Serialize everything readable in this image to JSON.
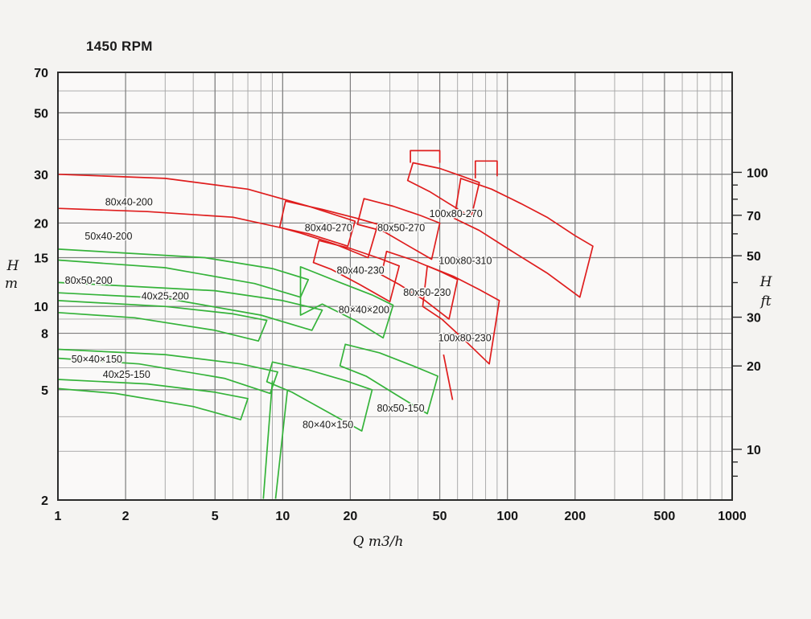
{
  "title": "1450 RPM",
  "colors": {
    "background": "#f4f3f1",
    "plot_fill": "#faf9f8",
    "grid_minor": "#a3a3a3",
    "grid_major": "#7e7e7e",
    "frame": "#2b2b2b",
    "tick_text": "#141414",
    "label_text": "#1c1c1c",
    "red": "#df1d1d",
    "green": "#35b33a"
  },
  "chart_data": {
    "type": "area",
    "title": "1450 RPM",
    "xlabel": "Q m3/h",
    "ylabel_left_line1": "H",
    "ylabel_left_line2": "m",
    "ylabel_right_line1": "H",
    "ylabel_right_line2": "ft",
    "x_scale": "log",
    "y_scale": "log",
    "xlim": [
      1,
      1000
    ],
    "ylim": [
      2,
      70
    ],
    "x_major_ticks": [
      1,
      2,
      5,
      10,
      20,
      50,
      100,
      200,
      500,
      1000
    ],
    "x_minor_ticks": [
      1,
      2,
      3,
      4,
      5,
      6,
      7,
      8,
      9,
      10,
      20,
      30,
      40,
      50,
      60,
      70,
      80,
      90,
      100,
      200,
      300,
      400,
      500,
      600,
      700,
      800,
      900,
      1000
    ],
    "y_major_ticks_m": [
      2,
      5,
      8,
      10,
      15,
      20,
      30,
      50,
      70
    ],
    "y_minor_ticks_m": [
      2,
      3,
      4,
      5,
      6,
      7,
      8,
      9,
      10,
      15,
      20,
      30,
      40,
      50,
      60,
      70
    ],
    "y_ticks_ft_labeled": [
      10,
      20,
      30,
      50,
      70,
      100
    ],
    "y_ticks_ft_minor": [
      8,
      9,
      10,
      20,
      30,
      40,
      50,
      60,
      70,
      80,
      90,
      100
    ],
    "ft_per_m": 3.2808,
    "envelopes": [
      {
        "label": "80x40-200",
        "family": "red",
        "label_q": 2.07,
        "label_h": 23.8,
        "points": [
          [
            1,
            30
          ],
          [
            3,
            29
          ],
          [
            7,
            26.5
          ],
          [
            13,
            23
          ],
          [
            21,
            20.3
          ],
          [
            19.5,
            16.5
          ],
          [
            13,
            18.3
          ],
          [
            6,
            21
          ],
          [
            2.5,
            22
          ],
          [
            1,
            22.6
          ]
        ]
      },
      {
        "label": "80x40-270",
        "family": "red",
        "label_q": 16,
        "label_h": 19.2,
        "points": [
          [
            10.3,
            24
          ],
          [
            15,
            22.4
          ],
          [
            21,
            20.9
          ],
          [
            26.5,
            19.8
          ],
          [
            24,
            15
          ],
          [
            17,
            16.8
          ],
          [
            12,
            18.4
          ],
          [
            9.7,
            19.3
          ]
        ]
      },
      {
        "label": "80x40-230",
        "family": "red",
        "label_q": 22.2,
        "label_h": 13.5,
        "points": [
          [
            14.5,
            17.3
          ],
          [
            20,
            16.2
          ],
          [
            27,
            14.9
          ],
          [
            33,
            14
          ],
          [
            30,
            10.4
          ],
          [
            22,
            12
          ],
          [
            16.5,
            13.6
          ],
          [
            13.7,
            14.4
          ]
        ]
      },
      {
        "label": "80x50-270",
        "family": "red",
        "label_q": 33.7,
        "label_h": 19.2,
        "points": [
          [
            23,
            24.5
          ],
          [
            31,
            23
          ],
          [
            41,
            21.3
          ],
          [
            50,
            20
          ],
          [
            46,
            14.8
          ],
          [
            36,
            16.6
          ],
          [
            28,
            18.7
          ],
          [
            21.5,
            19.8
          ]
        ]
      },
      {
        "label": "80x50-230",
        "family": "red",
        "label_q": 43.9,
        "label_h": 11.2,
        "points": [
          [
            29,
            15.8
          ],
          [
            38,
            14.7
          ],
          [
            50,
            13.4
          ],
          [
            60,
            12.5
          ],
          [
            55,
            9
          ],
          [
            43,
            10.5
          ],
          [
            33,
            12
          ],
          [
            27.5,
            13
          ]
        ]
      },
      {
        "label": "100x80-270",
        "family": "red",
        "label_q": 59,
        "label_h": 21.6,
        "points": [
          [
            38,
            33
          ],
          [
            50,
            31.5
          ],
          [
            63,
            29.5
          ],
          [
            75,
            28
          ],
          [
            69,
            21
          ],
          [
            55,
            23.5
          ],
          [
            45,
            26
          ],
          [
            36,
            28.5
          ]
        ]
      },
      {
        "label": "100x80-310",
        "family": "red",
        "label_q": 65,
        "label_h": 14.6,
        "points": [
          [
            62,
            29
          ],
          [
            85,
            26.5
          ],
          [
            115,
            23.5
          ],
          [
            150,
            21
          ],
          [
            200,
            18
          ],
          [
            240,
            16.5
          ],
          [
            210,
            10.8
          ],
          [
            150,
            13.2
          ],
          [
            105,
            15.8
          ],
          [
            75,
            18.8
          ],
          [
            58,
            20.8
          ]
        ]
      },
      {
        "label": "100x80-230",
        "family": "red",
        "label_q": 64.6,
        "label_h": 7.7,
        "points": [
          [
            44,
            14
          ],
          [
            58,
            12.8
          ],
          [
            75,
            11.5
          ],
          [
            92,
            10.5
          ],
          [
            83,
            6.2
          ],
          [
            64,
            7.6
          ],
          [
            51,
            9
          ],
          [
            42,
            10
          ]
        ]
      },
      {
        "label": "50x40-200",
        "family": "green",
        "label_q": 1.68,
        "label_h": 17.9,
        "points": [
          [
            1,
            16.1
          ],
          [
            4.5,
            15
          ],
          [
            9,
            13.7
          ],
          [
            13,
            12.5
          ],
          [
            12,
            10.8
          ],
          [
            7.5,
            12.1
          ],
          [
            3,
            13.8
          ],
          [
            1,
            14.7
          ]
        ]
      },
      {
        "label": "80x50-200",
        "family": "green",
        "label_q": 1.37,
        "label_h": 12.4,
        "points": [
          [
            1,
            12.2
          ],
          [
            5,
            11.4
          ],
          [
            10,
            10.5
          ],
          [
            15,
            9.7
          ],
          [
            13.5,
            8.2
          ],
          [
            8,
            9.3
          ],
          [
            3,
            10.7
          ],
          [
            1,
            11.2
          ]
        ]
      },
      {
        "label": "40x25-200",
        "family": "green",
        "label_q": 3.0,
        "label_h": 10.9,
        "points": [
          [
            1,
            10.5
          ],
          [
            3,
            10
          ],
          [
            6,
            9.4
          ],
          [
            8.5,
            8.9
          ],
          [
            7.8,
            7.5
          ],
          [
            5,
            8.2
          ],
          [
            2.2,
            9.1
          ],
          [
            1,
            9.5
          ]
        ]
      },
      {
        "label": "80×40×200",
        "family": "green",
        "label_q": 23,
        "label_h": 9.7,
        "points": [
          [
            12,
            13.9
          ],
          [
            18,
            12.2
          ],
          [
            25,
            11
          ],
          [
            31,
            10.1
          ],
          [
            28,
            7.7
          ],
          [
            21,
            8.9
          ],
          [
            15,
            10.2
          ],
          [
            12,
            9.3
          ]
        ]
      },
      {
        "label": "50×40×150",
        "family": "green",
        "label_q": 1.49,
        "label_h": 6.45,
        "points": [
          [
            1,
            7.0
          ],
          [
            3,
            6.7
          ],
          [
            6.5,
            6.2
          ],
          [
            9.5,
            5.8
          ],
          [
            8.8,
            4.85
          ],
          [
            5.5,
            5.5
          ],
          [
            2.3,
            6.2
          ],
          [
            1,
            6.5
          ]
        ]
      },
      {
        "label": "40x25-150",
        "family": "green",
        "label_q": 2.02,
        "label_h": 5.67,
        "points": [
          [
            1,
            5.45
          ],
          [
            2.5,
            5.25
          ],
          [
            5,
            4.9
          ],
          [
            7,
            4.65
          ],
          [
            6.5,
            3.9
          ],
          [
            4,
            4.35
          ],
          [
            1.8,
            4.85
          ],
          [
            1,
            5.05
          ]
        ]
      },
      {
        "label": "80×40×150",
        "family": "green",
        "label_q": 15.9,
        "label_h": 3.73,
        "points": [
          [
            9,
            6.3
          ],
          [
            13,
            5.9
          ],
          [
            19,
            5.4
          ],
          [
            25,
            5
          ],
          [
            22.5,
            3.55
          ],
          [
            15.5,
            4.2
          ],
          [
            11,
            4.9
          ],
          [
            8.5,
            5.35
          ]
        ]
      },
      {
        "label": "80x50-150",
        "family": "green",
        "label_q": 33.5,
        "label_h": 4.29,
        "points": [
          [
            19,
            7.3
          ],
          [
            27,
            6.8
          ],
          [
            38,
            6.1
          ],
          [
            49,
            5.6
          ],
          [
            44,
            4.1
          ],
          [
            32,
            4.8
          ],
          [
            23.5,
            5.6
          ],
          [
            18,
            6.1
          ]
        ]
      }
    ],
    "extra_strokes": [
      {
        "family": "green",
        "points": [
          [
            9,
            5.4
          ],
          [
            8.2,
            2.02
          ]
        ]
      },
      {
        "family": "green",
        "points": [
          [
            10.5,
            5.0
          ],
          [
            9.3,
            2.02
          ]
        ]
      },
      {
        "family": "red",
        "points": [
          [
            52,
            6.7
          ],
          [
            57,
            4.6
          ]
        ]
      },
      {
        "family": "red",
        "points": [
          [
            37,
            33
          ],
          [
            37,
            36.5
          ],
          [
            50,
            36.5
          ],
          [
            50,
            33
          ]
        ]
      },
      {
        "family": "red",
        "points": [
          [
            72,
            29
          ],
          [
            72,
            33.5
          ],
          [
            90,
            33.5
          ],
          [
            90,
            29.5
          ]
        ]
      }
    ]
  }
}
